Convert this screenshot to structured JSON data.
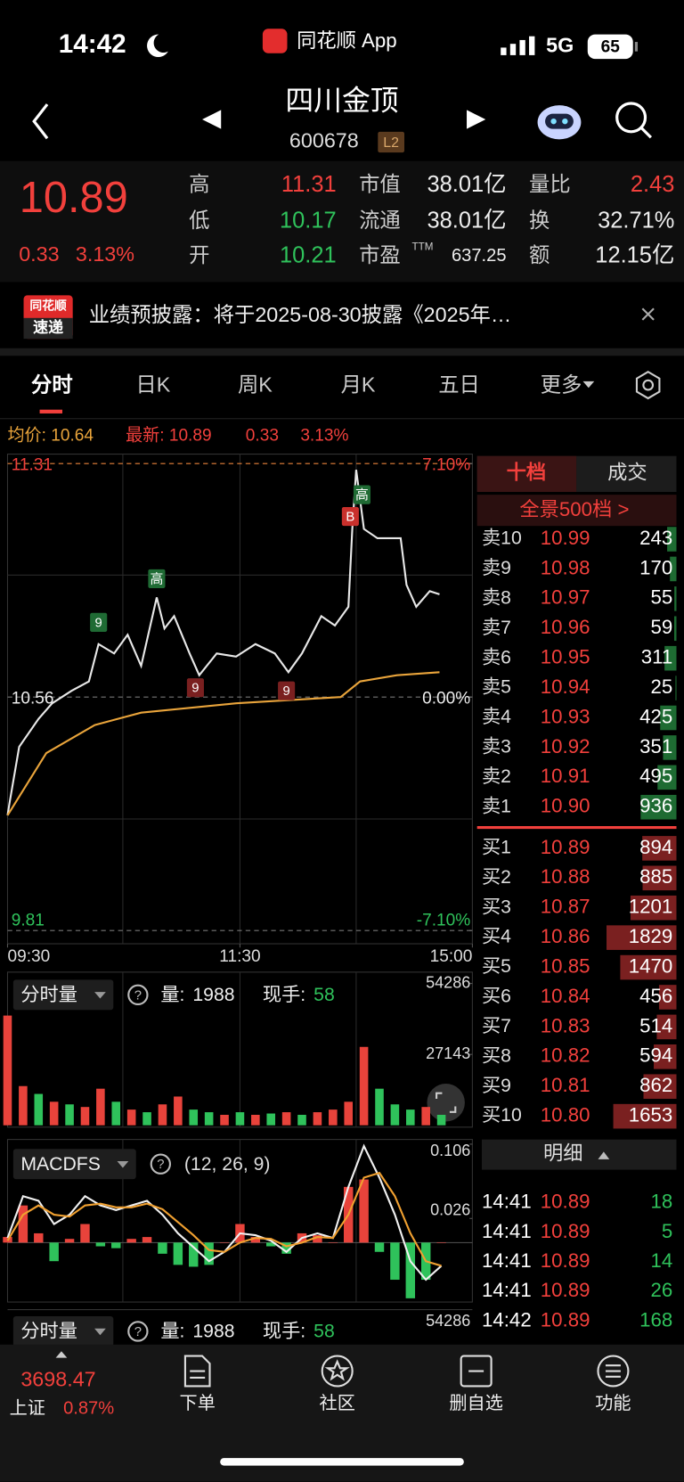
{
  "status": {
    "time": "14:42",
    "app": "同花顺 App",
    "network": "5G",
    "battery": "65"
  },
  "header": {
    "name": "四川金顶",
    "code": "600678",
    "level": "L2"
  },
  "quote": {
    "price": "10.89",
    "change": "0.33",
    "change_pct": "3.13%",
    "stats": [
      [
        {
          "label": "高",
          "value": "11.31"
        },
        {
          "label": "低",
          "value": "10.17"
        },
        {
          "label": "开",
          "value": "10.21"
        }
      ],
      [
        {
          "label": "市值",
          "value": "38.01亿"
        },
        {
          "label": "流通",
          "value": "38.01亿"
        },
        {
          "label": "市盈",
          "sup": "TTM",
          "value": "637.25"
        }
      ],
      [
        {
          "label": "量比",
          "value": "2.43"
        },
        {
          "label": "换",
          "value": "32.71%"
        },
        {
          "label": "额",
          "value": "12.15亿"
        }
      ]
    ]
  },
  "news": {
    "badge_top": "同花顺",
    "badge_bottom": "速递",
    "text": "业绩预披露：将于2025-08-30披露《2025年…"
  },
  "tabs": [
    "分时",
    "日K",
    "周K",
    "月K",
    "五日",
    "更多"
  ],
  "summary": {
    "avg": "均价: 10.64",
    "latest": "最新: 10.89",
    "change": "0.33",
    "change_pct": "3.13%"
  },
  "chart_data": [
    {
      "type": "line",
      "xlim": [
        0,
        240
      ],
      "ylim": [
        9.81,
        11.31
      ],
      "yticks": [
        9.81,
        10.56,
        11.31
      ],
      "y2lim": [
        -7.1,
        7.1
      ],
      "y2ticks": [
        {
          "value": -7.1,
          "label": "-7.10%"
        },
        {
          "value": 0,
          "label": "0.00%"
        },
        {
          "value": 7.1,
          "label": "7.10%"
        }
      ],
      "xticks": [
        {
          "value": 0,
          "label": "09:30"
        },
        {
          "value": 120,
          "label": "11:30"
        },
        {
          "value": 240,
          "label": "15:00"
        }
      ],
      "series": [
        {
          "color": "#e8e8e8",
          "x": [
            0,
            1,
            6,
            16,
            23,
            33,
            42,
            47,
            55,
            62,
            69,
            77,
            81,
            86,
            94,
            99,
            108,
            118,
            128,
            138,
            145,
            152,
            162,
            169,
            176,
            178,
            180,
            184,
            191,
            203,
            206,
            211,
            218,
            223
          ],
          "values": [
            10.18,
            10.22,
            10.4,
            10.49,
            10.54,
            10.58,
            10.61,
            10.73,
            10.7,
            10.76,
            10.66,
            10.88,
            10.78,
            10.82,
            10.7,
            10.63,
            10.7,
            10.69,
            10.73,
            10.7,
            10.64,
            10.7,
            10.82,
            10.79,
            10.85,
            11.1,
            11.29,
            11.1,
            11.07,
            11.07,
            10.92,
            10.85,
            10.9,
            10.89
          ]
        },
        {
          "color": "#e9a43b",
          "x": [
            0,
            20,
            45,
            69,
            118,
            172,
            182,
            201,
            223
          ],
          "values": [
            10.18,
            10.38,
            10.47,
            10.51,
            10.54,
            10.56,
            10.61,
            10.63,
            10.64
          ]
        }
      ],
      "annotations": [
        {
          "text": "9",
          "x": 47,
          "y": 10.8,
          "color": "#1f6b34"
        },
        {
          "text": "高",
          "x": 77,
          "y": 10.94,
          "color": "#1f6b34"
        },
        {
          "text": "9",
          "x": 97,
          "y": 10.59,
          "color": "#7a2020"
        },
        {
          "text": "9",
          "x": 144,
          "y": 10.58,
          "color": "#7a2020"
        },
        {
          "text": "B",
          "x": 177,
          "y": 11.14,
          "color": "#c9302c"
        },
        {
          "text": "高",
          "x": 183,
          "y": 11.21,
          "color": "#1f6b34"
        }
      ]
    },
    {
      "type": "bar",
      "title": "分时量",
      "stats": [
        {
          "label": "量:",
          "value": "1988"
        },
        {
          "label": "现手:",
          "value": "58"
        }
      ],
      "xlim": [
        0,
        240
      ],
      "x": [
        0,
        8,
        16,
        24,
        32,
        40,
        48,
        56,
        64,
        72,
        80,
        88,
        96,
        104,
        112,
        120,
        128,
        136,
        144,
        152,
        160,
        168,
        176,
        184,
        192,
        200,
        208,
        216,
        224
      ],
      "values": [
        42000,
        15000,
        12000,
        9000,
        8000,
        7000,
        14000,
        9000,
        6000,
        5000,
        8000,
        11000,
        6000,
        5000,
        4000,
        5000,
        4000,
        4500,
        5000,
        4000,
        5000,
        6000,
        9000,
        30000,
        14000,
        8000,
        6000,
        7000,
        4000
      ],
      "colors": [
        "#e8433b",
        "#e8433b",
        "#2fc25b",
        "#e8433b",
        "#2fc25b",
        "#e8433b",
        "#e8433b",
        "#2fc25b",
        "#e8433b",
        "#2fc25b",
        "#e8433b",
        "#e8433b",
        "#2fc25b",
        "#2fc25b",
        "#e8433b",
        "#2fc25b",
        "#e8433b",
        "#2fc25b",
        "#e8433b",
        "#2fc25b",
        "#e8433b",
        "#e8433b",
        "#e8433b",
        "#e8433b",
        "#2fc25b",
        "#2fc25b",
        "#2fc25b",
        "#e8433b",
        "#2fc25b"
      ],
      "ylim": [
        0,
        54286
      ],
      "yticks": [
        27143,
        54286
      ]
    },
    {
      "type": "macd",
      "title": "MACDFS",
      "params": "(12, 26, 9)",
      "xlim": [
        0,
        240
      ],
      "x": [
        0,
        8,
        16,
        24,
        32,
        40,
        48,
        56,
        64,
        72,
        80,
        88,
        96,
        104,
        112,
        120,
        128,
        136,
        144,
        152,
        160,
        168,
        176,
        184,
        192,
        200,
        208,
        216,
        224
      ],
      "series": [
        {
          "color": "#f0f0f0",
          "values": [
            0.005,
            0.05,
            0.045,
            0.02,
            0.03,
            0.05,
            0.04,
            0.035,
            0.04,
            0.045,
            0.03,
            0.01,
            -0.005,
            -0.02,
            -0.01,
            0.01,
            0.008,
            0.002,
            -0.01,
            0.005,
            0.01,
            0.005,
            0.06,
            0.104,
            0.07,
            0.03,
            -0.02,
            -0.04,
            -0.025
          ]
        },
        {
          "color": "#f0a030",
          "values": [
            0.002,
            0.03,
            0.04,
            0.03,
            0.028,
            0.04,
            0.042,
            0.038,
            0.038,
            0.042,
            0.036,
            0.022,
            0.008,
            -0.008,
            -0.01,
            0.0,
            0.005,
            0.004,
            -0.004,
            0.0,
            0.006,
            0.005,
            0.03,
            0.07,
            0.075,
            0.05,
            0.01,
            -0.02,
            -0.025
          ]
        }
      ],
      "histogram": [
        0.006,
        0.04,
        0.01,
        -0.02,
        0.004,
        0.02,
        -0.004,
        -0.006,
        0.004,
        0.006,
        -0.012,
        -0.024,
        -0.026,
        -0.024,
        0,
        0.02,
        0.006,
        -0.004,
        -0.012,
        0.01,
        0.008,
        0,
        0.06,
        0.068,
        -0.01,
        -0.04,
        -0.06,
        -0.04,
        0
      ],
      "ylim": [
        -0.062,
        0.106
      ],
      "yticks": [
        0.026,
        0.106
      ]
    }
  ],
  "panel2": {
    "title": "分时量",
    "stats": [
      {
        "label": "量:",
        "value": "1988"
      },
      {
        "label": "现手:",
        "value": "58"
      }
    ],
    "top": "54286"
  },
  "orderbook": {
    "tabs": [
      "十档",
      "成交"
    ],
    "depth": "全景500档 >",
    "asks": [
      [
        "卖10",
        "10.99",
        243
      ],
      [
        "卖9",
        "10.98",
        170
      ],
      [
        "卖8",
        "10.97",
        55
      ],
      [
        "卖7",
        "10.96",
        59
      ],
      [
        "卖6",
        "10.95",
        311
      ],
      [
        "卖5",
        "10.94",
        25
      ],
      [
        "卖4",
        "10.93",
        425
      ],
      [
        "卖3",
        "10.92",
        351
      ],
      [
        "卖2",
        "10.91",
        495
      ],
      [
        "卖1",
        "10.90",
        936
      ]
    ],
    "bids": [
      [
        "买1",
        "10.89",
        894
      ],
      [
        "买2",
        "10.88",
        885
      ],
      [
        "买3",
        "10.87",
        1201
      ],
      [
        "买4",
        "10.86",
        1829
      ],
      [
        "买5",
        "10.85",
        1470
      ],
      [
        "买6",
        "10.84",
        456
      ],
      [
        "买7",
        "10.83",
        514
      ],
      [
        "买8",
        "10.82",
        594
      ],
      [
        "买9",
        "10.81",
        862
      ],
      [
        "买10",
        "10.80",
        1653
      ]
    ]
  },
  "details": {
    "title": "明细",
    "rows": [
      [
        "14:41",
        "10.89",
        "18"
      ],
      [
        "14:41",
        "10.89",
        "5"
      ],
      [
        "14:41",
        "10.89",
        "14"
      ],
      [
        "14:41",
        "10.89",
        "26"
      ],
      [
        "14:42",
        "10.89",
        "168"
      ]
    ]
  },
  "nav": {
    "index_value": "3698.47",
    "index_name": "上证",
    "index_pct": "0.87%",
    "items": [
      "下单",
      "社区",
      "删自选",
      "功能"
    ]
  }
}
